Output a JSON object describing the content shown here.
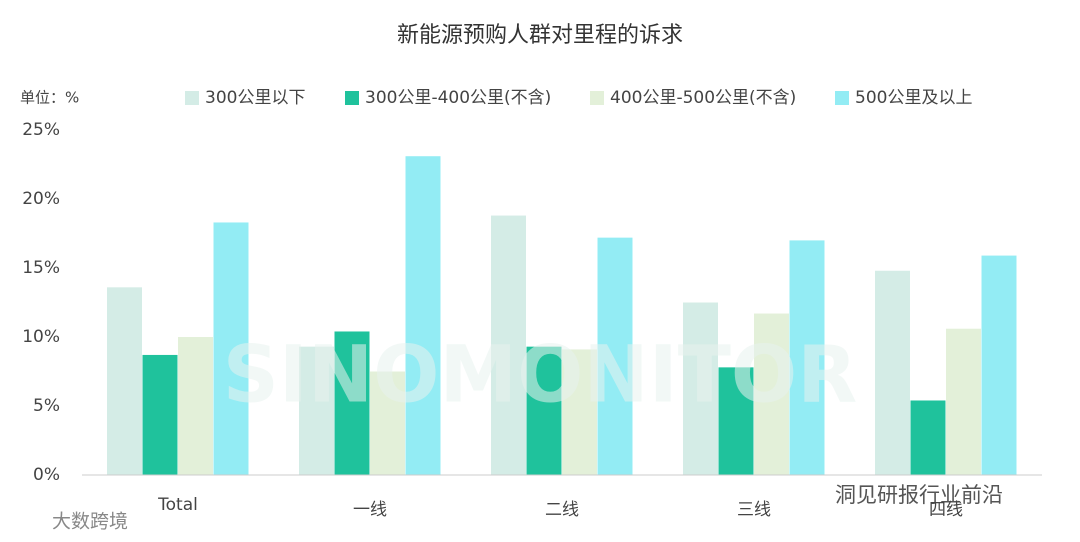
{
  "chart_data": {
    "type": "bar",
    "title": "新能源预购人群对里程的诉求",
    "unit_label": "单位：%",
    "categories": [
      "Total",
      "一线",
      "二线",
      "三线",
      "四线"
    ],
    "series": [
      {
        "name": "300公里以下",
        "color": "#d4ece6",
        "values": [
          13.6,
          9.3,
          18.8,
          12.5,
          14.8
        ]
      },
      {
        "name": "300公里-400公里(不含)",
        "color": "#1fc29c",
        "values": [
          8.7,
          10.4,
          9.3,
          7.8,
          5.4
        ]
      },
      {
        "name": "400公里-500公里(不含)",
        "color": "#e3f0d9",
        "values": [
          10.0,
          7.5,
          9.1,
          11.7,
          10.6
        ]
      },
      {
        "name": "500公里及以上",
        "color": "#93ecf4",
        "values": [
          18.3,
          23.1,
          17.2,
          17.0,
          15.9
        ]
      }
    ],
    "ylim": [
      0,
      25
    ],
    "yticks": [
      {
        "value": 0,
        "label": "0%"
      },
      {
        "value": 5,
        "label": "5%"
      },
      {
        "value": 10,
        "label": "10%"
      },
      {
        "value": 15,
        "label": "15%"
      },
      {
        "value": 20,
        "label": "20%"
      },
      {
        "value": 25,
        "label": "25%"
      }
    ],
    "watermarks": [
      "SINOMONITOR",
      "大数跨境",
      "洞见研报行业前沿"
    ]
  }
}
